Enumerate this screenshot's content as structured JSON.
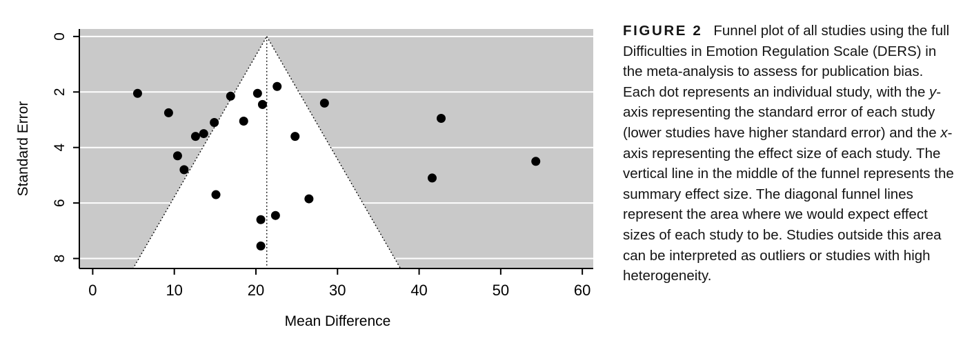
{
  "figure": {
    "caption_label": "FIGURE 2",
    "caption_segments": [
      {
        "style": "normal",
        "text": "Funnel plot of all studies using the full Difficulties in Emotion Regulation Scale (DERS) in the meta-analysis to assess for publication bias. Each dot represents an individual study, with the "
      },
      {
        "style": "italic",
        "text": "y"
      },
      {
        "style": "normal",
        "text": "-axis representing the standard error of each study (lower studies have higher standard error) and the "
      },
      {
        "style": "italic",
        "text": "x"
      },
      {
        "style": "normal",
        "text": "-axis representing the effect size of each study. The vertical line in the middle of the funnel represents the summary effect size. The diagonal funnel lines represent the area where we would expect effect sizes of each study to be. Studies outside this area can be interpreted as outliers or studies with high heterogeneity."
      }
    ]
  },
  "chart_data": {
    "type": "scatter",
    "title": "",
    "xlabel": "Mean Difference",
    "ylabel": "Standard Error",
    "x_ticks": [
      0,
      10,
      20,
      30,
      40,
      50,
      60
    ],
    "y_ticks": [
      0,
      2,
      4,
      6,
      8
    ],
    "xlim": [
      -1.64,
      61.34
    ],
    "ylim_top_to_bottom": [
      -0.27,
      8.36
    ],
    "y_axis_reversed": true,
    "grid": "horizontal white gridlines at y ticks",
    "legend_position": "none",
    "summary_effect": 21.33,
    "funnel": {
      "center": 21.33,
      "se_multiplier": 1.96
    },
    "points": [
      [
        5.5,
        2.05
      ],
      [
        9.3,
        2.75
      ],
      [
        10.4,
        4.3
      ],
      [
        11.2,
        4.8
      ],
      [
        12.6,
        3.6
      ],
      [
        13.6,
        3.5
      ],
      [
        14.9,
        3.1
      ],
      [
        15.1,
        5.7
      ],
      [
        16.9,
        2.15
      ],
      [
        18.5,
        3.05
      ],
      [
        20.2,
        2.05
      ],
      [
        20.8,
        2.45
      ],
      [
        20.6,
        6.6
      ],
      [
        20.6,
        7.55
      ],
      [
        22.4,
        6.45
      ],
      [
        22.6,
        1.8
      ],
      [
        24.8,
        3.6
      ],
      [
        26.5,
        5.85
      ],
      [
        28.4,
        2.4
      ],
      [
        41.6,
        5.1
      ],
      [
        42.7,
        2.95
      ],
      [
        54.3,
        4.5
      ]
    ],
    "colors": {
      "plot_background": "#c9c9c9",
      "funnel_fill": "#ffffff",
      "gridline": "#ffffff",
      "point": "#000000",
      "axis": "#000000",
      "funnel_border": "#000000"
    }
  }
}
